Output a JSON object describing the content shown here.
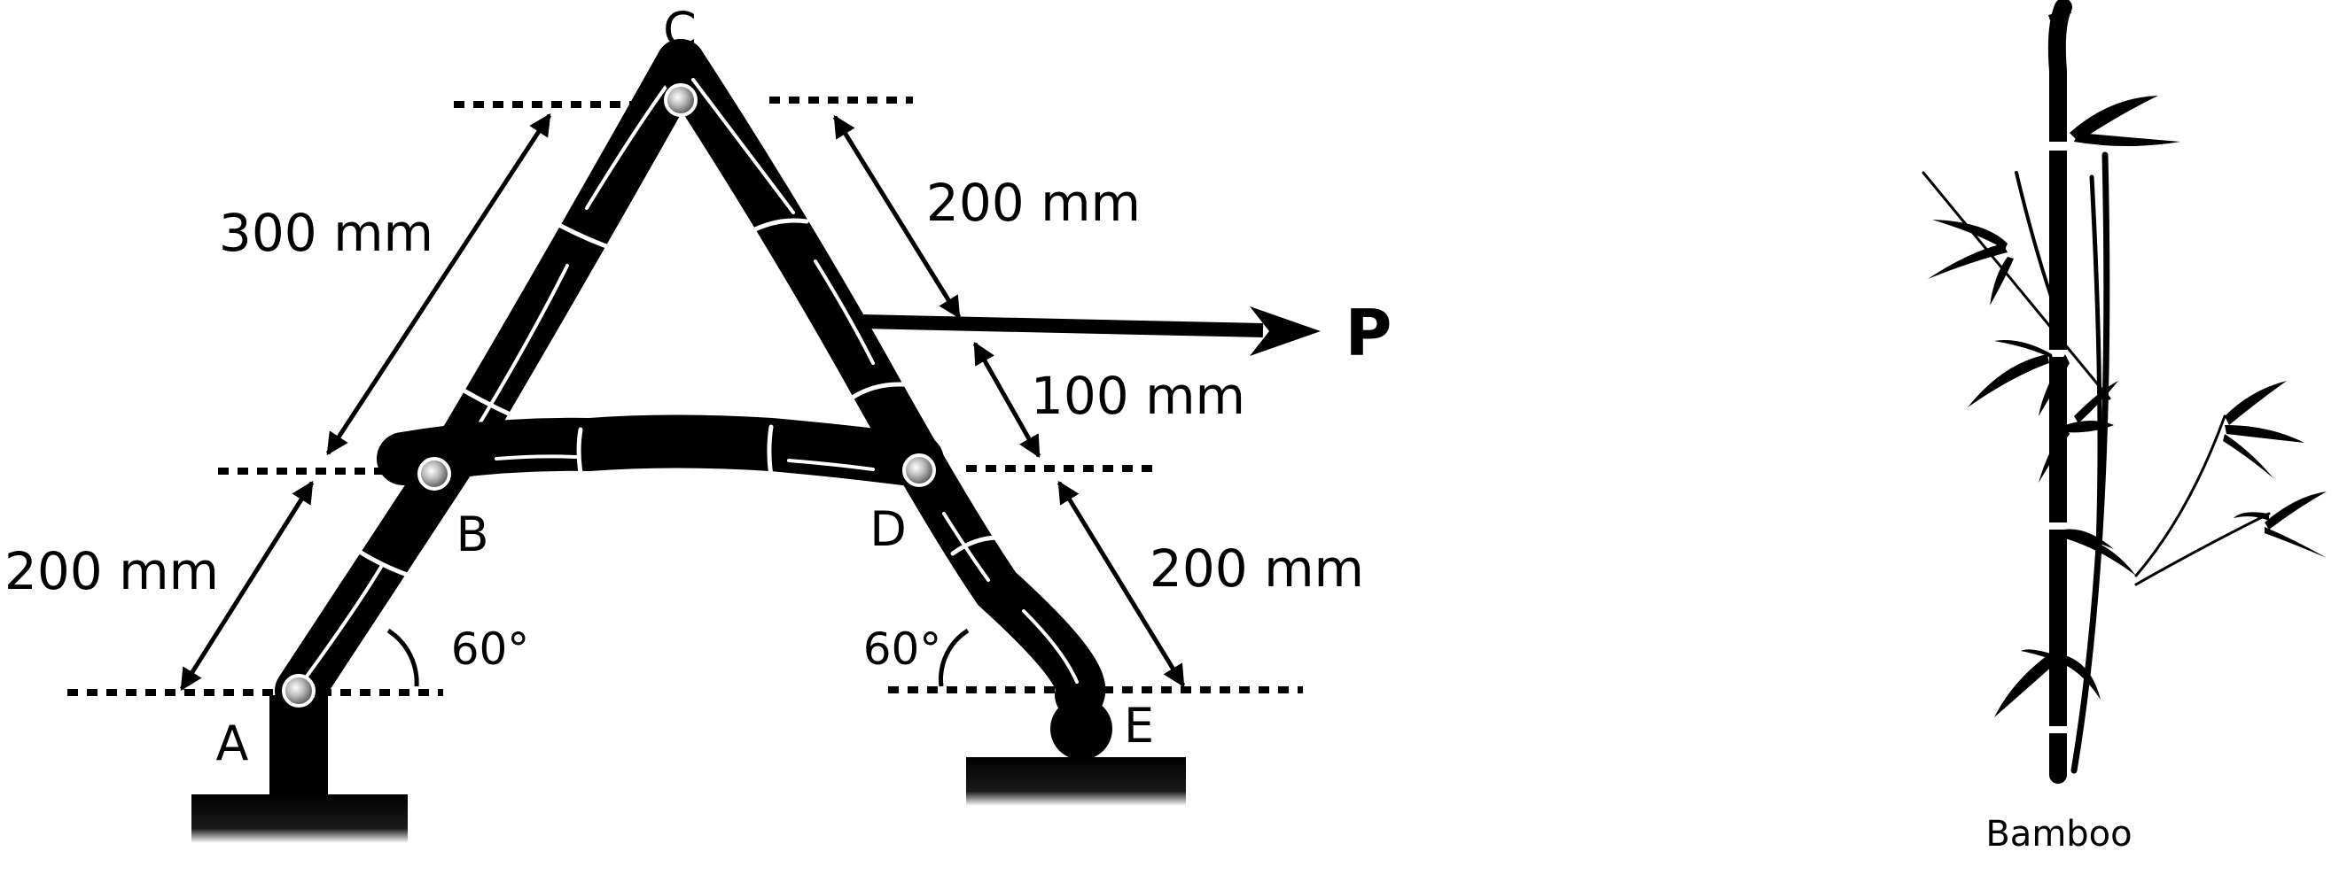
{
  "diagram": {
    "points": {
      "A": "A",
      "B": "B",
      "C": "C",
      "D": "D",
      "E": "E"
    },
    "dimensions": {
      "left_upper": "300 mm",
      "left_lower": "200 mm",
      "right_upper": "200 mm",
      "right_middle": "100 mm",
      "right_lower": "200 mm"
    },
    "angles": {
      "left": "60°",
      "right": "60°"
    },
    "force": {
      "label": "P"
    }
  },
  "bamboo": {
    "caption": "Bamboo"
  },
  "colors": {
    "ink": "#000000",
    "pin": "#9a9a9a"
  }
}
